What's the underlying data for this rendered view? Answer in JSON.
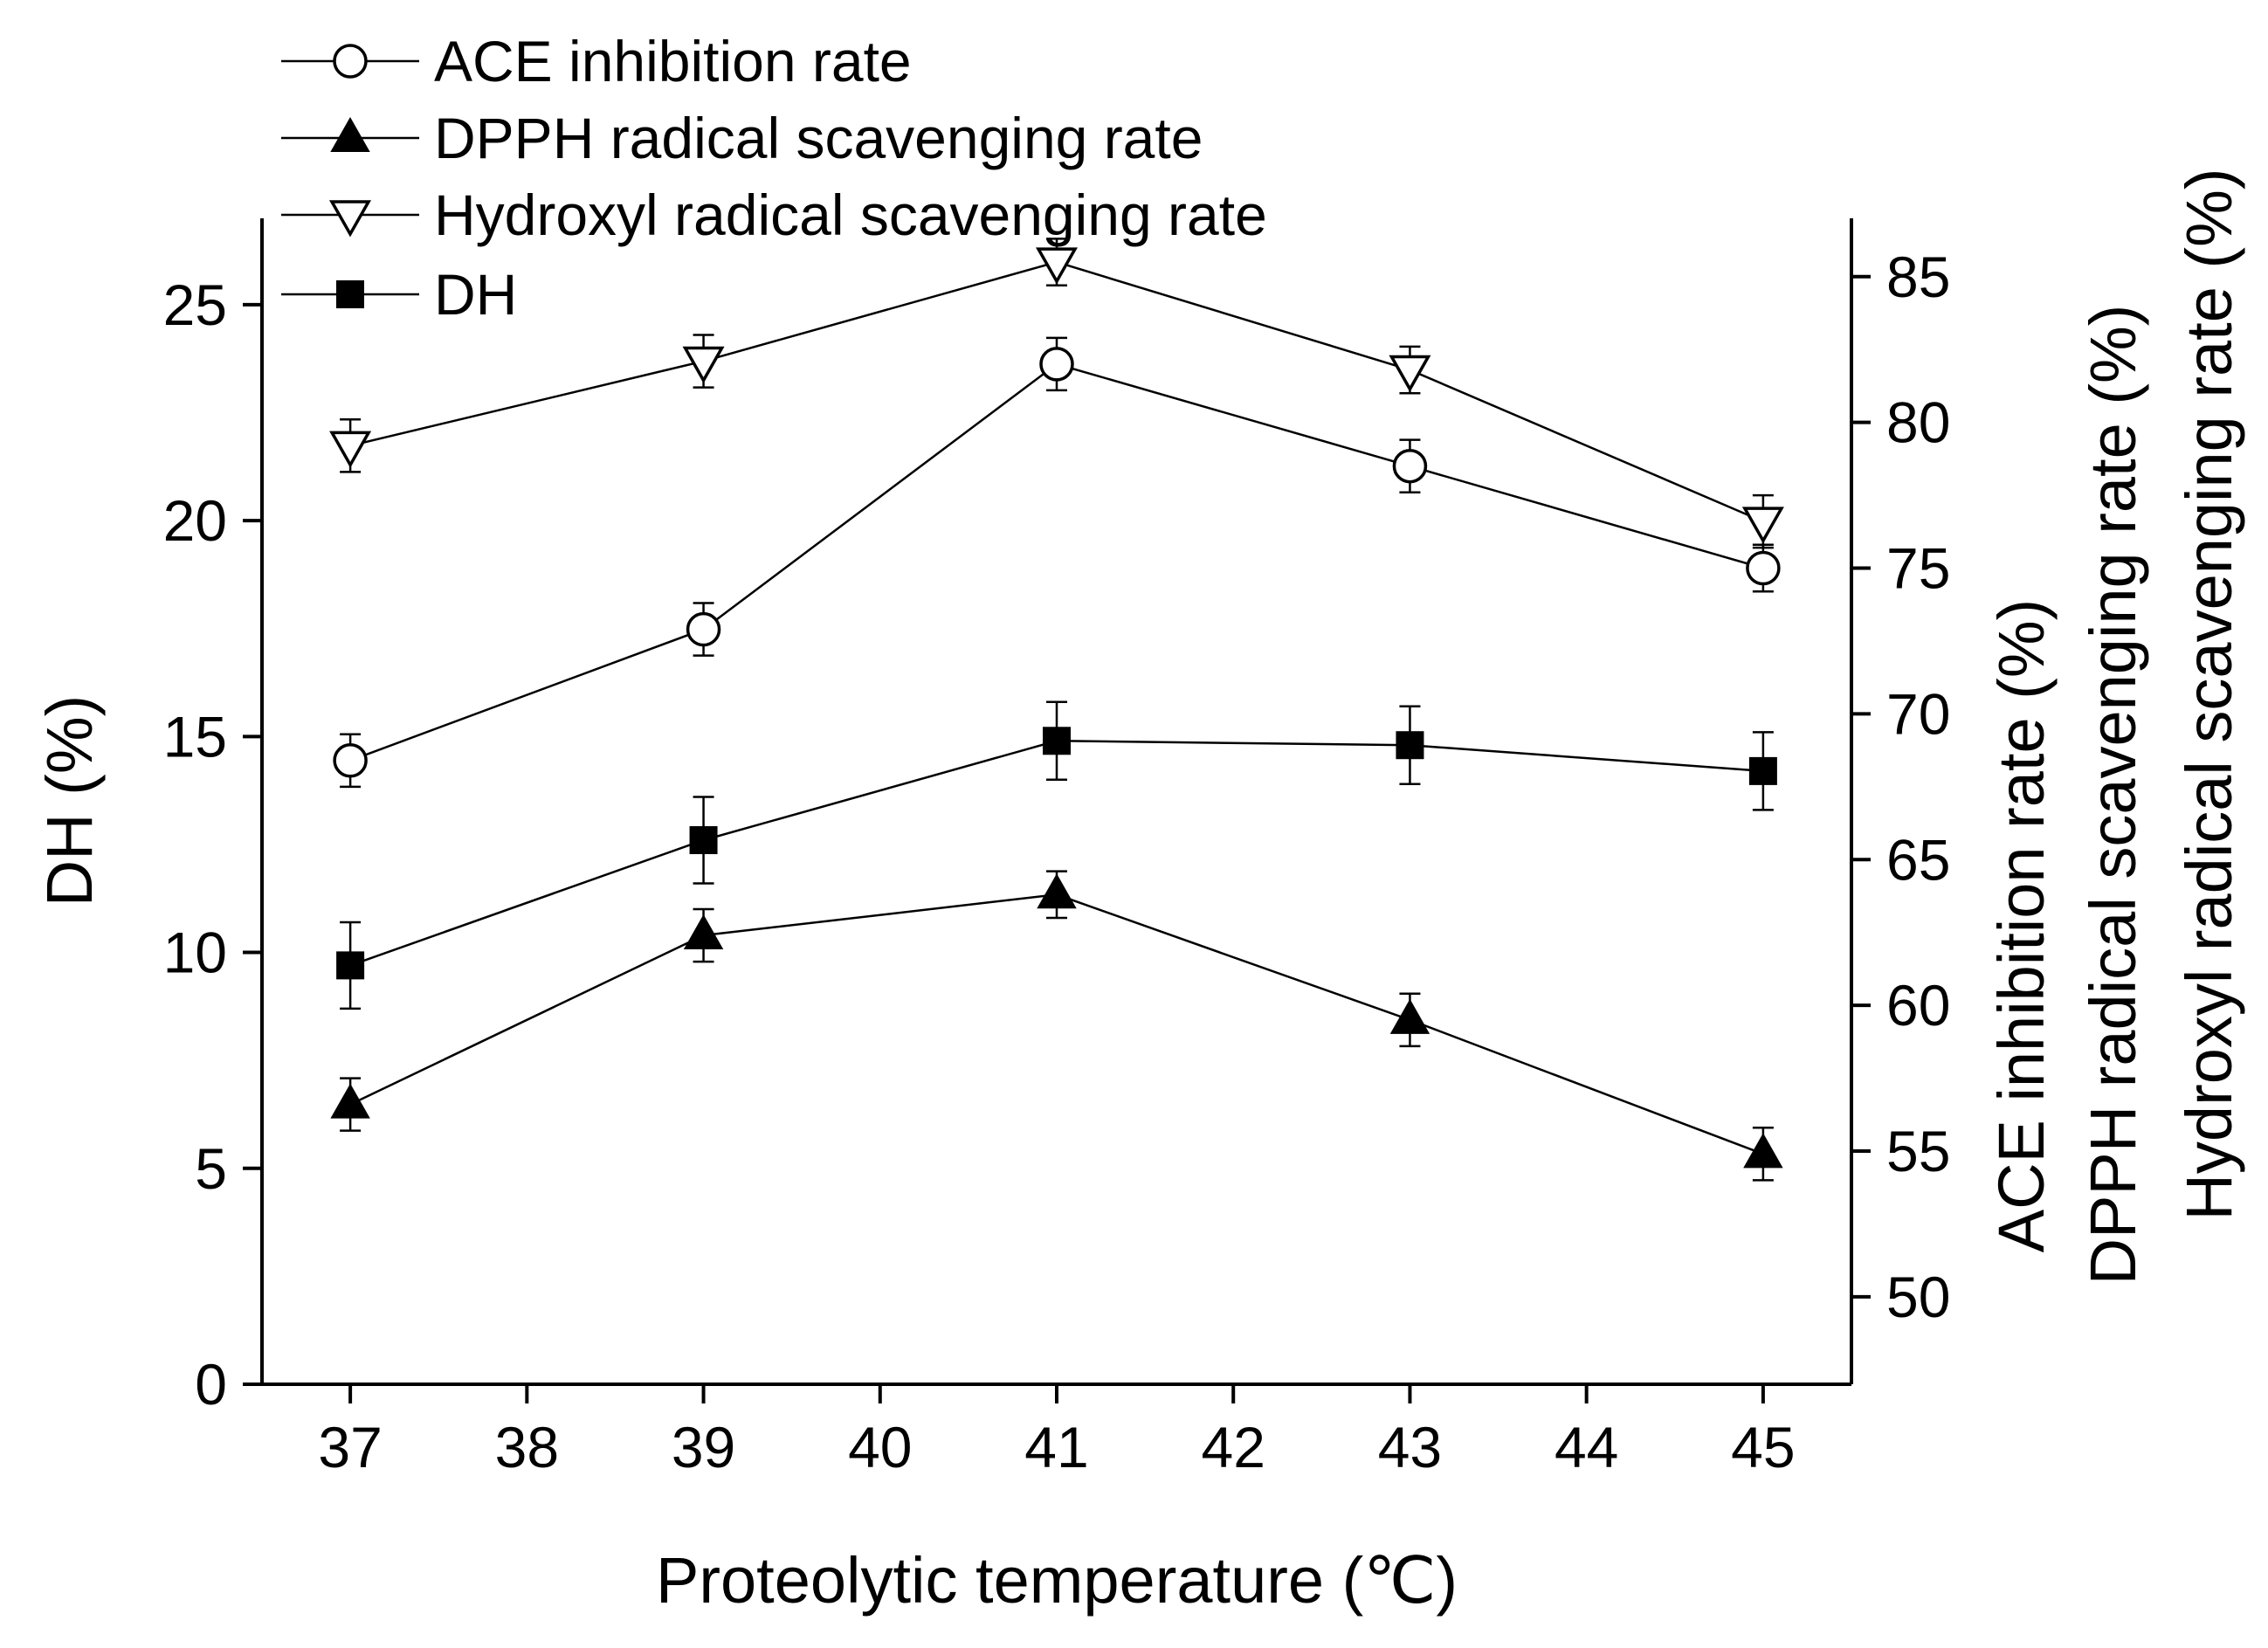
{
  "chart_data": {
    "type": "line",
    "xlabel": "Proteolytic temperature (℃)",
    "ylabel_left": "DH (%)",
    "ylabel_right": [
      "ACE inhibition rate (%)",
      "DPPH radical scavenging rate (%)",
      "Hydroxyl radical scavenging rate (%)"
    ],
    "xlim": [
      36.5,
      45.5
    ],
    "xticks": [
      "37",
      "38",
      "39",
      "40",
      "41",
      "42",
      "43",
      "44",
      "45"
    ],
    "ylim_left": [
      0,
      27
    ],
    "yticks_left": [
      "0",
      "5",
      "10",
      "15",
      "20",
      "25"
    ],
    "ylim_right": [
      47,
      87
    ],
    "yticks_right": [
      "50",
      "55",
      "60",
      "65",
      "70",
      "75",
      "80",
      "85"
    ],
    "grid": false,
    "legend_position": "top-left",
    "x": [
      37,
      39,
      41,
      43,
      45
    ],
    "series": [
      {
        "name": "ACE inhibition rate",
        "axis": "right",
        "marker": "open-circle",
        "values": [
          68.4,
          72.9,
          82.0,
          78.5,
          75.0
        ],
        "error": [
          0.9,
          0.9,
          0.9,
          0.9,
          0.8
        ]
      },
      {
        "name": "DPPH radical scavenging rate",
        "axis": "right",
        "marker": "filled-triangle-up",
        "values": [
          56.6,
          62.4,
          63.8,
          59.5,
          54.9
        ],
        "error": [
          0.9,
          0.9,
          0.8,
          0.9,
          0.9
        ]
      },
      {
        "name": "Hydroxyl radical scavenging rate",
        "axis": "right",
        "marker": "open-triangle-down",
        "values": [
          79.2,
          82.1,
          85.5,
          81.8,
          76.6
        ],
        "error": [
          0.9,
          0.9,
          0.8,
          0.8,
          0.9
        ]
      },
      {
        "name": "DH",
        "axis": "left",
        "marker": "filled-square",
        "values": [
          9.7,
          12.6,
          14.9,
          14.8,
          14.2
        ],
        "error": [
          1.0,
          1.0,
          0.9,
          0.9,
          0.9
        ]
      }
    ]
  }
}
